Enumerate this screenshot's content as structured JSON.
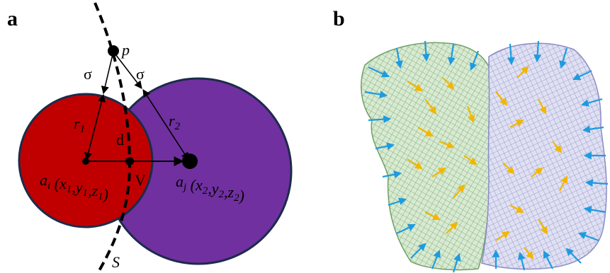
{
  "panels": {
    "a": {
      "label": "a",
      "point_label": "p",
      "sigma_left": "σ",
      "sigma_right": "σ",
      "radius_1": [
        {
          "text": "r",
          "sub": "1"
        }
      ],
      "radius_2": [
        {
          "text": "r",
          "sub": "2"
        }
      ],
      "distance": "d",
      "vertex": "V",
      "surface": "S",
      "atom_i": [
        {
          "text": "a",
          "sub": "i"
        },
        {
          "text": " (x",
          "sub": "1"
        },
        {
          "text": ",y",
          "sub": "1"
        },
        {
          "text": ",z",
          "sub": "1"
        },
        {
          "text": ")"
        }
      ],
      "atom_j": [
        {
          "text": "a",
          "sub": "j"
        },
        {
          "text": " (x",
          "sub": "2"
        },
        {
          "text": ",y",
          "sub": "2"
        },
        {
          "text": ",z",
          "sub": "2"
        },
        {
          "text": ")"
        }
      ]
    },
    "b": {
      "label": "b"
    }
  }
}
